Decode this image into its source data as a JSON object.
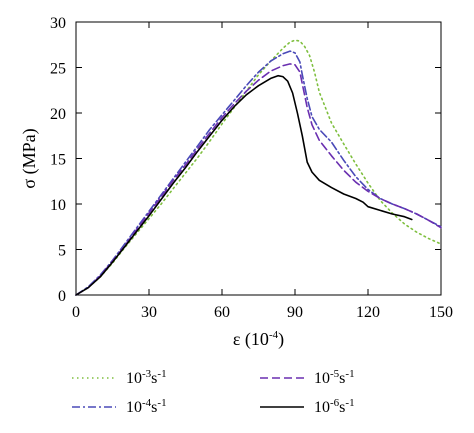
{
  "chart_data": {
    "type": "line",
    "xlabel": "ε (10-4)",
    "ylabel": "σ (MPa)",
    "xlim": [
      0,
      150
    ],
    "ylim": [
      0,
      30
    ],
    "x_ticks": [
      "0",
      "30",
      "60",
      "90",
      "120",
      "150"
    ],
    "y_ticks": [
      "0",
      "5",
      "10",
      "15",
      "20",
      "25",
      "30"
    ],
    "grid": false,
    "legend_position": "bottom",
    "series": [
      {
        "name": "10-3s-1",
        "color": "#7fbf3f",
        "style": "dotted",
        "x": [
          0,
          5,
          10,
          15,
          20,
          25,
          30,
          35,
          40,
          45,
          50,
          55,
          60,
          65,
          70,
          75,
          80,
          85,
          88,
          90,
          92,
          94,
          96,
          98,
          100,
          105,
          110,
          115,
          120,
          125,
          130,
          135,
          140,
          145,
          150
        ],
        "y": [
          0,
          0.8,
          2.0,
          3.5,
          5.2,
          6.8,
          8.4,
          10.0,
          11.7,
          13.4,
          15.1,
          16.9,
          18.8,
          20.6,
          22.4,
          24.2,
          25.7,
          27.1,
          27.8,
          28.0,
          27.9,
          27.3,
          26.3,
          24.5,
          22.3,
          18.9,
          16.6,
          14.4,
          12.3,
          10.4,
          9.0,
          7.8,
          6.9,
          6.2,
          5.6
        ]
      },
      {
        "name": "10-4s-1",
        "color": "#4a4ab8",
        "style": "dashdot",
        "x": [
          0,
          5,
          10,
          15,
          20,
          25,
          30,
          35,
          40,
          45,
          50,
          55,
          60,
          65,
          70,
          75,
          80,
          85,
          88,
          90,
          92,
          93,
          95,
          97,
          100,
          105,
          110,
          115,
          120,
          125,
          130,
          135,
          140,
          145,
          150
        ],
        "y": [
          0,
          0.9,
          2.2,
          3.8,
          5.6,
          7.4,
          9.2,
          11.0,
          12.8,
          14.6,
          16.4,
          18.2,
          19.8,
          21.4,
          23.0,
          24.5,
          25.7,
          26.5,
          26.8,
          26.6,
          25.6,
          24.2,
          21.6,
          19.6,
          18.2,
          16.8,
          14.8,
          13.0,
          11.6,
          10.6,
          10.0,
          9.5,
          8.9,
          8.2,
          7.5
        ]
      },
      {
        "name": "10-5s-1",
        "color": "#6a2fb0",
        "style": "dashed",
        "x": [
          0,
          5,
          10,
          15,
          20,
          25,
          30,
          35,
          40,
          45,
          50,
          55,
          60,
          65,
          70,
          75,
          80,
          85,
          88,
          90,
          92,
          93,
          95,
          97,
          100,
          105,
          110,
          115,
          120,
          125,
          130,
          135,
          140,
          145,
          150
        ],
        "y": [
          0,
          0.8,
          2.1,
          3.7,
          5.4,
          7.2,
          9.0,
          10.8,
          12.6,
          14.3,
          16.1,
          17.8,
          19.5,
          21.0,
          22.4,
          23.6,
          24.6,
          25.2,
          25.4,
          25.3,
          24.5,
          23.2,
          20.6,
          18.7,
          17.0,
          15.3,
          13.7,
          12.4,
          11.4,
          10.6,
          10.0,
          9.5,
          8.9,
          8.2,
          7.4
        ]
      },
      {
        "name": "10-6s-1",
        "color": "#000000",
        "style": "solid",
        "x": [
          0,
          5,
          10,
          15,
          20,
          25,
          30,
          35,
          40,
          45,
          50,
          55,
          60,
          65,
          70,
          75,
          80,
          83,
          85,
          87,
          89,
          91,
          93,
          95,
          97,
          100,
          105,
          110,
          115,
          118,
          120,
          125,
          130,
          135,
          138
        ],
        "y": [
          0,
          0.8,
          2.0,
          3.6,
          5.3,
          7.0,
          8.7,
          10.5,
          12.3,
          14.0,
          15.8,
          17.5,
          19.2,
          20.7,
          22.0,
          23.0,
          23.8,
          24.1,
          24.0,
          23.5,
          22.2,
          20.0,
          17.5,
          14.6,
          13.5,
          12.6,
          11.8,
          11.1,
          10.6,
          10.2,
          9.7,
          9.3,
          8.9,
          8.6,
          8.3
        ]
      }
    ]
  }
}
